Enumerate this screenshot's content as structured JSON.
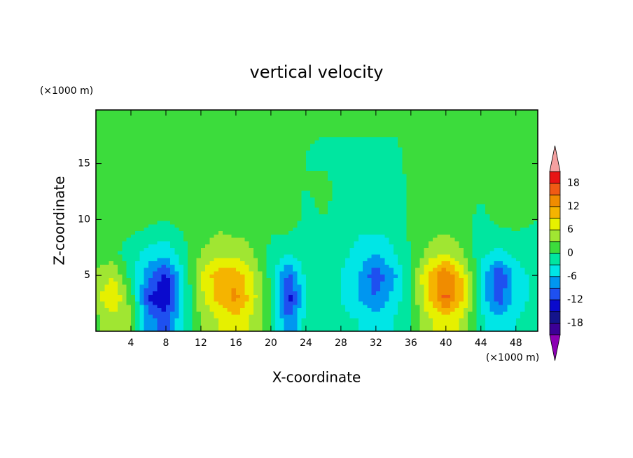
{
  "chart_data": {
    "type": "contour",
    "title": "vertical velocity",
    "xlabel": "X-coordinate",
    "ylabel": "Z-coordinate",
    "xunit": "(×1000 m)",
    "yunit": "(×1000 m)",
    "xlim": [
      0,
      50.5
    ],
    "ylim": [
      0,
      19.8
    ],
    "xticks": [
      4,
      8,
      12,
      16,
      20,
      24,
      28,
      32,
      36,
      40,
      44,
      48
    ],
    "yticks": [
      5,
      10,
      15
    ],
    "x": [
      0,
      2,
      4,
      6,
      8,
      10,
      12,
      14,
      16,
      18,
      20,
      22,
      24,
      26,
      28,
      30,
      32,
      34,
      36,
      38,
      40,
      42,
      44,
      46,
      48,
      50
    ],
    "z": [
      1,
      3,
      5,
      7,
      10,
      13,
      16,
      19
    ],
    "values": [
      [
        2,
        5,
        3,
        -8,
        -10,
        -3,
        3,
        6,
        8,
        5,
        0,
        -9,
        -2,
        -1,
        -2,
        -3,
        -4,
        -3,
        0,
        5,
        8,
        5,
        -2,
        -5,
        -3,
        -1
      ],
      [
        5,
        9,
        2,
        -12,
        -15,
        -4,
        5,
        10,
        13,
        7,
        0,
        -14,
        -3,
        -2,
        -3,
        -6,
        -9,
        -5,
        0,
        9,
        16,
        9,
        -4,
        -11,
        -5,
        -2
      ],
      [
        4,
        6,
        -1,
        -8,
        -13,
        -3,
        6,
        11,
        11,
        6,
        -1,
        -10,
        -2,
        -2,
        -3,
        -6,
        -11,
        -7,
        0,
        10,
        15,
        8,
        -4,
        -12,
        -5,
        -2
      ],
      [
        1,
        1,
        -2,
        -4,
        -5,
        -1,
        3,
        5,
        5,
        3,
        -1,
        -3,
        -1,
        -1,
        -2,
        -4,
        -6,
        -3,
        0,
        4,
        6,
        3,
        -2,
        -4,
        -2,
        -1
      ],
      [
        1,
        1,
        2,
        1,
        0,
        1,
        1,
        2,
        1,
        2,
        1,
        2,
        -1,
        0,
        -1,
        -2,
        -1,
        -2,
        1,
        1,
        1,
        1,
        -1,
        1,
        1,
        0
      ],
      [
        1,
        1,
        1,
        2,
        1,
        1,
        2,
        1,
        1,
        1,
        2,
        1,
        0,
        1,
        -1,
        -1,
        -1,
        -2,
        1,
        2,
        1,
        1,
        1,
        1,
        1,
        1
      ],
      [
        1,
        1,
        1,
        1,
        1,
        1,
        1,
        2,
        1,
        1,
        1,
        1,
        0,
        -1,
        -1,
        -1,
        -1,
        -1,
        1,
        1,
        1,
        1,
        1,
        1,
        1,
        1
      ],
      [
        1,
        1,
        1,
        1,
        2,
        1,
        1,
        1,
        1,
        1,
        1,
        1,
        1,
        1,
        1,
        1,
        1,
        1,
        1,
        1,
        1,
        1,
        1,
        1,
        1,
        1
      ]
    ],
    "levels": [
      -21,
      -18,
      -15,
      -12,
      -9,
      -6,
      -3,
      0,
      3,
      6,
      9,
      12,
      15,
      18,
      21
    ],
    "colors": [
      "#3c0096",
      "#14148c",
      "#0a0acd",
      "#1e50f0",
      "#0096f0",
      "#00e6e6",
      "#00e6a0",
      "#3cdc3c",
      "#a0e632",
      "#e6f000",
      "#f5b400",
      "#f08c00",
      "#f05a14",
      "#e81414"
    ],
    "under_color": "#8c00b4",
    "over_color": "#f4a0a0",
    "colorbar_ticks": [
      -18,
      -12,
      -6,
      0,
      6,
      12,
      18
    ]
  }
}
